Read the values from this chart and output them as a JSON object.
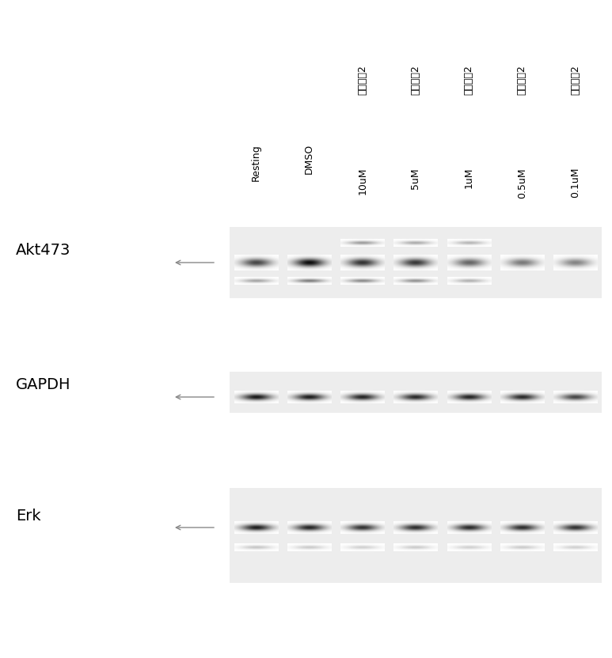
{
  "white": "#ffffff",
  "n_lanes": 7,
  "lane_labels_split": [
    [
      "Resting"
    ],
    [
      "DMSO"
    ],
    [
      "白术内酯2",
      "10uM"
    ],
    [
      "白术内酯2",
      "5uM"
    ],
    [
      "白术内酯2",
      "1uM"
    ],
    [
      "白术内酯2",
      "0.5uM"
    ],
    [
      "白术内酯2",
      "0.1uM"
    ]
  ],
  "row_labels": [
    "Akt473",
    "GAPDH",
    "Erk"
  ],
  "akt_main_intensity": [
    0.72,
    0.95,
    0.8,
    0.78,
    0.6,
    0.52,
    0.48
  ],
  "akt_upper_intensity": [
    0.0,
    0.0,
    0.38,
    0.32,
    0.28,
    0.0,
    0.0
  ],
  "akt_lower_intensity": [
    0.35,
    0.5,
    0.45,
    0.42,
    0.3,
    0.0,
    0.0
  ],
  "gapdh_intensity": [
    0.9,
    0.88,
    0.85,
    0.83,
    0.85,
    0.83,
    0.72
  ],
  "erk_main_intensity": [
    0.88,
    0.85,
    0.8,
    0.82,
    0.83,
    0.82,
    0.8
  ],
  "erk_lower_intensity": [
    0.22,
    0.2,
    0.18,
    0.2,
    0.18,
    0.2,
    0.18
  ]
}
